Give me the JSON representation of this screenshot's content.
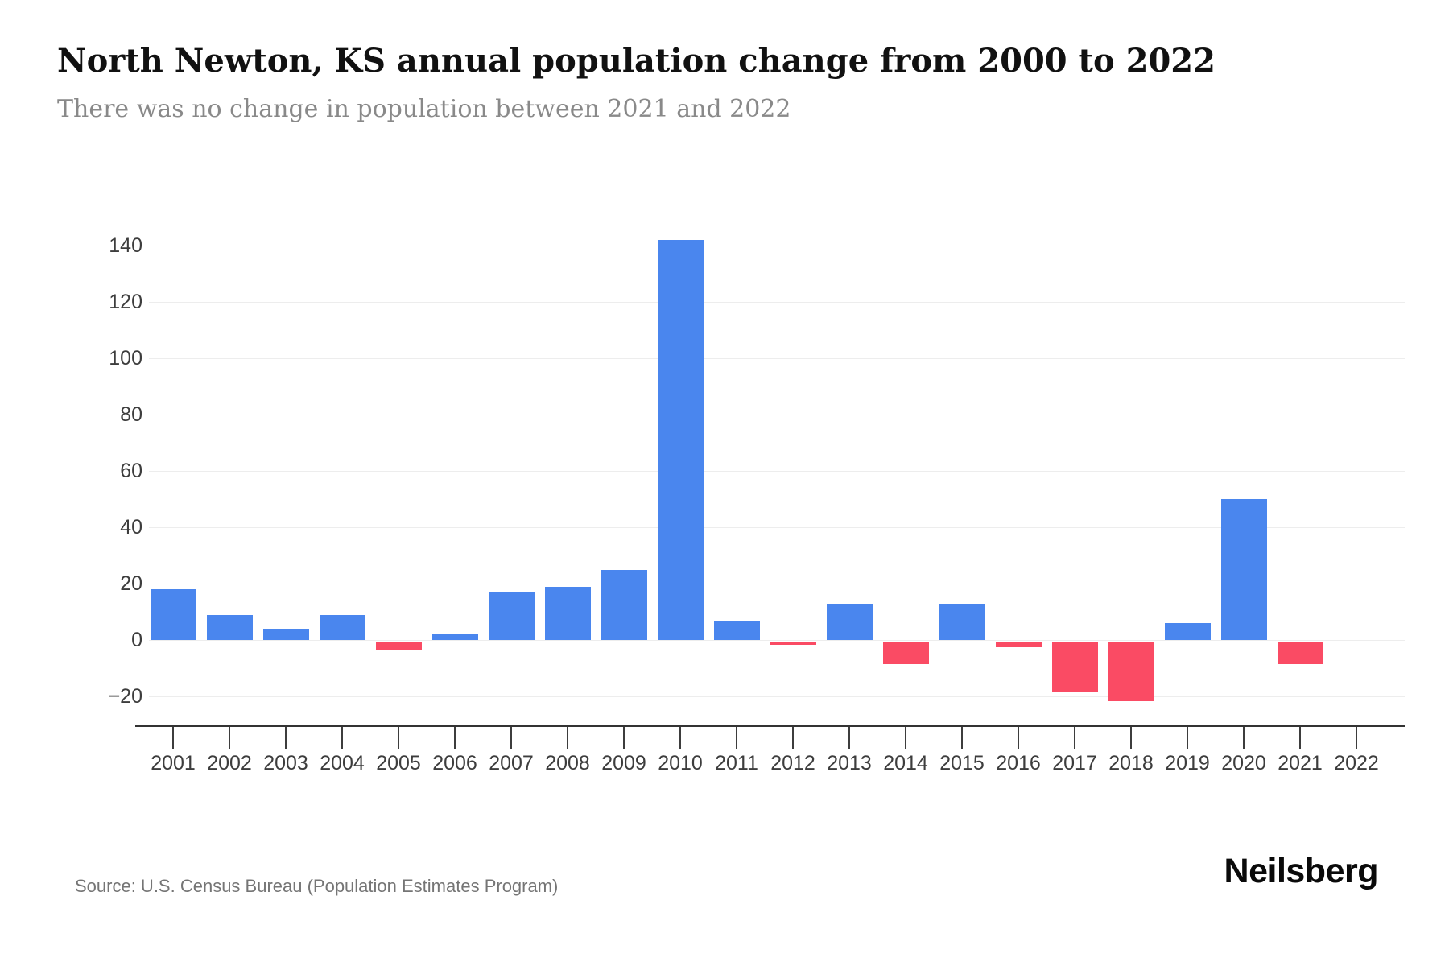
{
  "chart_data": {
    "type": "bar",
    "title": "North Newton, KS annual population change from 2000 to 2022",
    "subtitle": "There was no change in population between 2021 and 2022",
    "categories": [
      "2001",
      "2002",
      "2003",
      "2004",
      "2005",
      "2006",
      "2007",
      "2008",
      "2009",
      "2010",
      "2011",
      "2012",
      "2013",
      "2014",
      "2015",
      "2016",
      "2017",
      "2018",
      "2019",
      "2020",
      "2021",
      "2022"
    ],
    "values": [
      18,
      9,
      4,
      9,
      -3,
      2,
      17,
      19,
      25,
      142,
      7,
      -1,
      13,
      -8,
      13,
      -2,
      -18,
      -21,
      6,
      50,
      -8,
      0
    ],
    "xlabel": "",
    "ylabel": "",
    "ylim": [
      -20,
      150
    ],
    "yticks": [
      140,
      120,
      100,
      80,
      60,
      40,
      20,
      0,
      -20
    ],
    "grid": true,
    "legend": "none",
    "colors": {
      "positive_bar": "#4A86EE",
      "negative_bar": "#FA4B64",
      "gridline": "#ededed",
      "axis": "#333333",
      "tick_text": "#3d3d3d"
    }
  },
  "footer": {
    "source": "Source: U.S. Census Bureau (Population Estimates Program)",
    "brand": "Neilsberg"
  }
}
